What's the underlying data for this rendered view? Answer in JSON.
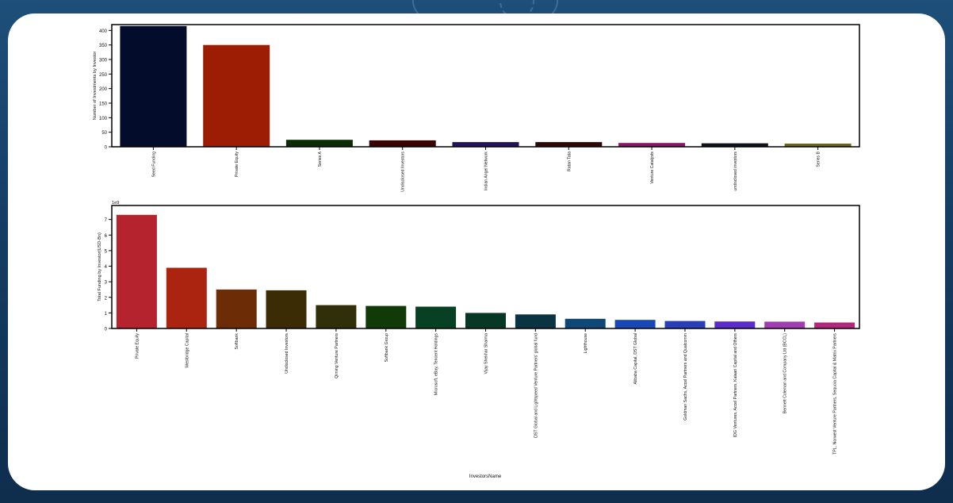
{
  "chart_data": [
    {
      "type": "bar",
      "title": "",
      "xlabel": "",
      "ylabel": "Number of Investments by Investor",
      "ylim": [
        0,
        420
      ],
      "yticks": [
        "0",
        "50",
        "100",
        "150",
        "200",
        "250",
        "300",
        "350",
        "400"
      ],
      "grid": false,
      "categories": [
        "Seed Funding",
        "Private Equity",
        "Series A",
        "Undisclosed Investors",
        "Indian Angel Network",
        "Ratan Tata",
        "Venture Catalysts",
        "undisclosed investors",
        "Series B"
      ],
      "values": [
        415,
        350,
        24,
        22,
        16,
        16,
        13,
        12,
        11
      ],
      "colors": [
        "#030c2b",
        "#9c1c04",
        "#0c2c05",
        "#3b0202",
        "#23115c",
        "#300707",
        "#8c1466",
        "#0e131c",
        "#6b6614"
      ]
    },
    {
      "type": "bar",
      "title": "",
      "xlabel": "InvestorsName",
      "ylabel": "Total Funding by Investor(USD-Bn)",
      "ylim": [
        0,
        7.9
      ],
      "yticks": [
        "0",
        "1",
        "2",
        "3",
        "4",
        "5",
        "6",
        "7"
      ],
      "scale_label": "1e9",
      "grid": false,
      "categories": [
        "Private Equity",
        "Westbridge Capital",
        "Softbank",
        "Undisclosed Investors",
        "Qiming Venture Partners",
        "Softbank Group",
        "Microsoft, eBay, Tencent Holdings",
        "Vijay Shekhar Sharma",
        "DST Global and Lightspeed Venture Partners' global fund",
        "Lighthouse",
        "Alibaba Capital, DST Global",
        "Goldman Sachs, Accel Partners and Qualcomm",
        "IDG Ventures, Accel Partners, Kalaari Capital and Others",
        "Bennett Coleman and Company Ltd (BCCL)",
        "TPL, Norwest Venture Partners, Sequoia Capital & Matrix Partners"
      ],
      "values": [
        7.3,
        3.9,
        2.5,
        2.45,
        1.5,
        1.45,
        1.4,
        1.0,
        0.9,
        0.62,
        0.55,
        0.48,
        0.45,
        0.44,
        0.38
      ],
      "colors": [
        "#b5232f",
        "#ab2410",
        "#6b2c06",
        "#3b2c06",
        "#302f0a",
        "#113a09",
        "#074022",
        "#073826",
        "#0a3442",
        "#0f4777",
        "#1848b5",
        "#2a3fb7",
        "#5a2cc9",
        "#a13cb2",
        "#b2287a"
      ]
    }
  ]
}
